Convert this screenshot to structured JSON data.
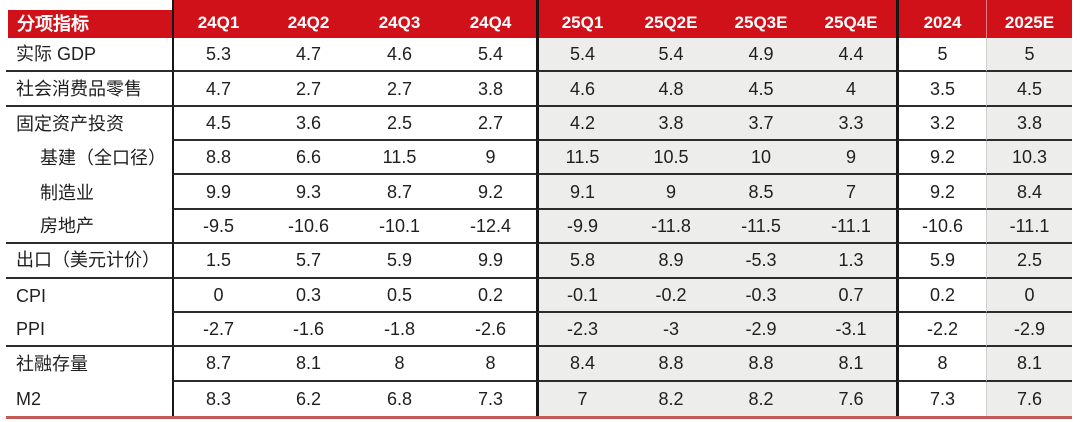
{
  "style": {
    "header_bg": "#d0111a",
    "header_text": "#ffffff",
    "grid_line": "#2c2c2c",
    "vertical_line": "#161616",
    "shaded_column_bg": "#ededeb",
    "bottom_border": "#c25b55"
  },
  "chart_data": {
    "type": "table",
    "header_label": "分项指标",
    "columns": [
      "24Q1",
      "24Q2",
      "24Q3",
      "24Q4",
      "25Q1",
      "25Q2E",
      "25Q3E",
      "25Q4E",
      "2024",
      "2025E"
    ],
    "shaded_column_indexes": [
      4,
      5,
      6,
      7,
      9
    ],
    "groups": [
      {
        "rows": [
          {
            "label": "实际 GDP",
            "indent": false,
            "values": [
              "5.3",
              "4.7",
              "4.6",
              "5.4",
              "5.4",
              "5.4",
              "4.9",
              "4.4",
              "5",
              "5"
            ]
          }
        ]
      },
      {
        "rows": [
          {
            "label": "社会消费品零售",
            "indent": false,
            "values": [
              "4.7",
              "2.7",
              "2.7",
              "3.8",
              "4.6",
              "4.8",
              "4.5",
              "4",
              "3.5",
              "4.5"
            ]
          }
        ]
      },
      {
        "rows": [
          {
            "label": "固定资产投资",
            "indent": false,
            "values": [
              "4.5",
              "3.6",
              "2.5",
              "2.7",
              "4.2",
              "3.8",
              "3.7",
              "3.3",
              "3.2",
              "3.8"
            ]
          },
          {
            "label": "基建（全口径）",
            "indent": true,
            "values": [
              "8.8",
              "6.6",
              "11.5",
              "9",
              "11.5",
              "10.5",
              "10",
              "9",
              "9.2",
              "10.3"
            ]
          },
          {
            "label": "制造业",
            "indent": true,
            "values": [
              "9.9",
              "9.3",
              "8.7",
              "9.2",
              "9.1",
              "9",
              "8.5",
              "7",
              "9.2",
              "8.4"
            ]
          },
          {
            "label": "房地产",
            "indent": true,
            "values": [
              "-9.5",
              "-10.6",
              "-10.1",
              "-12.4",
              "-9.9",
              "-11.8",
              "-11.5",
              "-11.1",
              "-10.6",
              "-11.1"
            ]
          }
        ]
      },
      {
        "rows": [
          {
            "label": "出口（美元计价）",
            "indent": false,
            "values": [
              "1.5",
              "5.7",
              "5.9",
              "9.9",
              "5.8",
              "8.9",
              "-5.3",
              "1.3",
              "5.9",
              "2.5"
            ]
          }
        ]
      },
      {
        "rows": [
          {
            "label": "CPI",
            "indent": false,
            "values": [
              "0",
              "0.3",
              "0.5",
              "0.2",
              "-0.1",
              "-0.2",
              "-0.3",
              "0.7",
              "0.2",
              "0"
            ]
          },
          {
            "label": "PPI",
            "indent": false,
            "values": [
              "-2.7",
              "-1.6",
              "-1.8",
              "-2.6",
              "-2.3",
              "-3",
              "-2.9",
              "-3.1",
              "-2.2",
              "-2.9"
            ]
          }
        ]
      },
      {
        "rows": [
          {
            "label": "社融存量",
            "indent": false,
            "values": [
              "8.7",
              "8.1",
              "8",
              "8",
              "8.4",
              "8.8",
              "8.8",
              "8.1",
              "8",
              "8.1"
            ]
          },
          {
            "label": "M2",
            "indent": false,
            "values": [
              "8.3",
              "6.2",
              "6.8",
              "7.3",
              "7",
              "8.2",
              "8.2",
              "7.6",
              "7.3",
              "7.6"
            ]
          }
        ]
      }
    ]
  }
}
